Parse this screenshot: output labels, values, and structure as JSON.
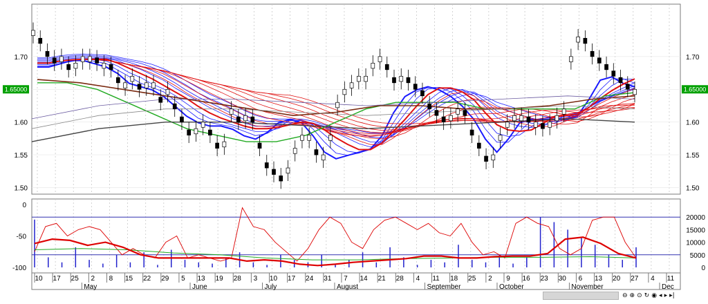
{
  "chart_data": [
    {
      "type": "candlestick",
      "panel": "price",
      "ylim": [
        1.49,
        1.78
      ],
      "y_ticks": [
        "1.70",
        "1.65",
        "1.60",
        "1.55",
        "1.50"
      ],
      "y_tick_values": [
        1.7,
        1.65,
        1.6,
        1.55,
        1.5
      ],
      "last_price_label": "1.65000",
      "last_price": 1.65,
      "x_day_ticks": [
        "10",
        "17",
        "25",
        "2",
        "8",
        "15",
        "22",
        "29",
        "5",
        "13",
        "19",
        "28",
        "3",
        "10",
        "17",
        "24",
        "31",
        "7",
        "14",
        "21",
        "28",
        "4",
        "11",
        "18",
        "25",
        "2",
        "9",
        "16",
        "23",
        "30",
        "6",
        "13",
        "20",
        "27",
        "4",
        "11"
      ],
      "x_month_labels": [
        "May",
        "June",
        "July",
        "August",
        "September",
        "October",
        "November",
        "Dec"
      ],
      "series": [
        {
          "name": "candles",
          "values": [
            1.74,
            1.72,
            1.7,
            1.69,
            1.7,
            1.68,
            1.69,
            1.7,
            1.7,
            1.69,
            1.69,
            1.68,
            1.66,
            1.66,
            1.67,
            1.65,
            1.66,
            1.66,
            1.63,
            1.65,
            1.62,
            1.6,
            1.58,
            1.59,
            1.6,
            1.58,
            1.56,
            1.57,
            1.62,
            1.6,
            1.61,
            1.6,
            1.56,
            1.53,
            1.52,
            1.51,
            1.53,
            1.56,
            1.58,
            1.58,
            1.55,
            1.55,
            1.58,
            1.63,
            1.65,
            1.66,
            1.67,
            1.67,
            1.69,
            1.7,
            1.68,
            1.66,
            1.67,
            1.66,
            1.65,
            1.64,
            1.62,
            1.61,
            1.6,
            1.61,
            1.62,
            1.61,
            1.58,
            1.56,
            1.54,
            1.55,
            1.58,
            1.6,
            1.61,
            1.61,
            1.6,
            1.6,
            1.59,
            1.6,
            1.61,
            1.62,
            1.7,
            1.73,
            1.72,
            1.7,
            1.69,
            1.68,
            1.67,
            1.66,
            1.65,
            1.65
          ]
        },
        {
          "name": "ma-fast",
          "values": [
            1.69,
            1.69,
            1.7,
            1.7,
            1.7,
            1.69,
            1.69,
            1.67,
            1.66,
            1.66,
            1.65,
            1.64,
            1.62,
            1.61,
            1.6,
            1.6,
            1.6,
            1.59,
            1.58,
            1.58,
            1.6,
            1.61,
            1.61,
            1.6,
            1.57,
            1.55,
            1.55,
            1.56,
            1.56,
            1.57,
            1.6,
            1.64,
            1.65,
            1.66,
            1.66,
            1.65,
            1.64,
            1.62,
            1.6,
            1.56,
            1.56,
            1.6,
            1.61,
            1.61,
            1.61,
            1.61,
            1.61,
            1.62,
            1.66,
            1.68,
            1.67,
            1.66,
            1.66
          ]
        },
        {
          "name": "ma-green",
          "values": [
            1.66,
            1.66,
            1.65,
            1.63,
            1.61,
            1.59,
            1.58,
            1.57,
            1.57,
            1.58,
            1.6,
            1.62,
            1.63,
            1.63,
            1.63,
            1.62,
            1.62,
            1.62,
            1.62,
            1.64,
            1.645
          ]
        },
        {
          "name": "ma-brown",
          "values": [
            1.665,
            1.66,
            1.65,
            1.64,
            1.63,
            1.62,
            1.61,
            1.615,
            1.625,
            1.625,
            1.62,
            1.62,
            1.625,
            1.635,
            1.64
          ]
        },
        {
          "name": "ma-grey",
          "values": [
            1.57,
            1.59,
            1.6,
            1.6,
            1.595,
            1.59,
            1.595,
            1.6,
            1.605,
            1.6
          ]
        }
      ]
    },
    {
      "type": "line",
      "panel": "oscillator",
      "ylim_left": [
        -100,
        0
      ],
      "y_ticks_left": [
        "0",
        "-50",
        "-100"
      ],
      "ylim_right": [
        0,
        25000
      ],
      "y_ticks_right": [
        "20000",
        "15000",
        "10000",
        "5000",
        "0"
      ],
      "series": [
        {
          "name": "osc-thin",
          "values": [
            -75,
            -35,
            -30,
            -50,
            -40,
            -35,
            -40,
            -60,
            -80,
            -70,
            -80,
            -85,
            -60,
            -50,
            -85,
            -80,
            -85,
            -90,
            -85,
            -5,
            -35,
            -40,
            -60,
            -75,
            -90,
            -70,
            -40,
            -20,
            -30,
            -60,
            -70,
            -40,
            -25,
            -20,
            -30,
            -40,
            -30,
            -45,
            -50,
            -30,
            -60,
            -80,
            -75,
            -85,
            -30,
            -20,
            -30,
            -35,
            -70,
            -80,
            -70,
            -25,
            -20,
            -20,
            -60,
            -85
          ]
        },
        {
          "name": "osc-thick",
          "values": [
            -62,
            -55,
            -57,
            -65,
            -60,
            -68,
            -80,
            -85,
            -85,
            -85,
            -85,
            -85,
            -90,
            -88,
            -90,
            -95,
            -97,
            -95,
            -92,
            -90,
            -88,
            -86,
            -82,
            -82,
            -85,
            -85,
            -83,
            -82,
            -82,
            -78,
            -55,
            -52,
            -62,
            -78,
            -85
          ]
        },
        {
          "name": "osc-green",
          "values": [
            -72,
            -70,
            -72,
            -77,
            -80,
            -85,
            -88,
            -88,
            -86,
            -85,
            -84,
            -84,
            -83,
            -85
          ]
        },
        {
          "name": "volume",
          "values": [
            19000,
            4000,
            2000,
            8000,
            3000,
            1500,
            5000,
            2000,
            6000,
            1000,
            7000,
            3000,
            2000,
            1500,
            4000,
            6000,
            2000,
            1000,
            5000,
            3000,
            2000,
            5000,
            1000,
            3000,
            6000,
            2000,
            8000,
            4000,
            1000,
            3000,
            2000,
            9000,
            3000,
            2000,
            5000,
            1500,
            4000,
            20000,
            18000,
            15000,
            12000,
            9000,
            5000,
            3000,
            8000
          ]
        }
      ]
    }
  ],
  "colors": {
    "candle_up": "#ffffff",
    "candle_down": "#000000",
    "ma_blue": "#1a1aff",
    "ma_red": "#e01010",
    "ma_green": "#22aa22",
    "ma_brown": "#7a2a10",
    "osc_red": "#dd0000",
    "volume_blue": "#2020cc",
    "grid": "#c8c8c8",
    "price_tag_bg": "#00a000"
  },
  "toolbar": {
    "icons": [
      "zoom-out-icon",
      "zoom-in-icon",
      "zoom-fit-icon",
      "zoom-reset-icon",
      "settings-icon",
      "scroll-left-icon",
      "scroll-right-icon",
      "scroll-end-icon"
    ],
    "glyphs": [
      "⊖",
      "⊕",
      "⊙",
      "↻",
      "◉",
      "◂",
      "▸",
      "▸|"
    ]
  }
}
